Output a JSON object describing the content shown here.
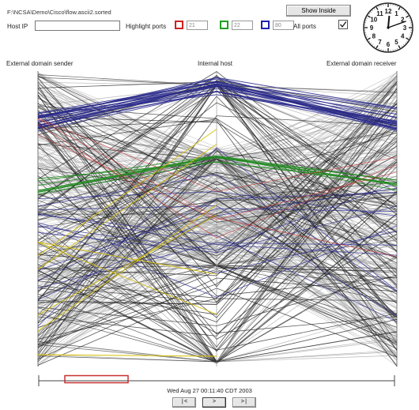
{
  "header": {
    "file_path": "F:\\NCSA\\Demo\\Cisco\\flow.ascii2.sorted",
    "host_ip_label": "Host IP",
    "host_ip_value": "",
    "highlight_label": "Highlight ports",
    "ports": [
      {
        "value": "21",
        "color": "#d02020"
      },
      {
        "value": "22",
        "color": "#20a020"
      },
      {
        "value": "80",
        "color": "#2020b0"
      }
    ],
    "all_ports_label": "All ports",
    "all_ports_checked": true,
    "show_inside_label": "Show Inside"
  },
  "axes": {
    "left": "External domain sender",
    "center": "Internal host",
    "right": "External domain receiver"
  },
  "colors": {
    "gray": "#9a9a9a",
    "black": "#222222",
    "blue": "#2a2a8c",
    "green": "#208a20",
    "yellow": "#d6c000",
    "red": "#c83030"
  },
  "timeline": {
    "timestamp": "Wed Aug 27 00:11:40 CDT 2003"
  },
  "nav": {
    "prev_label": "|<",
    "play_label": ">",
    "next_label": ">|"
  },
  "clock": {
    "numbers": [
      "12",
      "1",
      "2",
      "3",
      "4",
      "5",
      "6",
      "7",
      "8",
      "9",
      "10",
      "11"
    ],
    "hour": 0.18,
    "minute": 11.7
  }
}
